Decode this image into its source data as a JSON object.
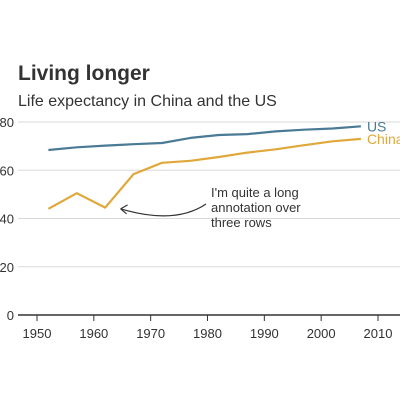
{
  "chart_data": {
    "type": "line",
    "title": "Living longer",
    "subtitle": "Life expectancy in China and the US",
    "xlabel": "",
    "ylabel": "",
    "xlim": [
      1950,
      2010
    ],
    "ylim": [
      0,
      80
    ],
    "x_ticks": [
      1950,
      1960,
      1970,
      1980,
      1990,
      2000,
      2010
    ],
    "y_ticks": [
      0,
      20,
      40,
      60,
      80
    ],
    "grid": true,
    "series": [
      {
        "name": "US",
        "color": "#4a7a96",
        "points": [
          [
            1952,
            68.4
          ],
          [
            1957,
            69.5
          ],
          [
            1962,
            70.2
          ],
          [
            1967,
            70.8
          ],
          [
            1972,
            71.3
          ],
          [
            1977,
            73.4
          ],
          [
            1982,
            74.6
          ],
          [
            1987,
            75.0
          ],
          [
            1992,
            76.1
          ],
          [
            1997,
            76.8
          ],
          [
            2002,
            77.3
          ],
          [
            2007,
            78.2
          ]
        ]
      },
      {
        "name": "China",
        "color": "#e0a83a",
        "points": [
          [
            1952,
            44.0
          ],
          [
            1957,
            50.5
          ],
          [
            1962,
            44.5
          ],
          [
            1967,
            58.4
          ],
          [
            1972,
            63.1
          ],
          [
            1977,
            63.9
          ],
          [
            1982,
            65.5
          ],
          [
            1987,
            67.3
          ],
          [
            1992,
            68.7
          ],
          [
            1997,
            70.4
          ],
          [
            2002,
            72.0
          ],
          [
            2007,
            73.0
          ]
        ]
      }
    ],
    "annotation": {
      "lines": [
        "I'm quite a long",
        "annotation over",
        "three rows"
      ],
      "points_to": [
        1964,
        44
      ]
    }
  }
}
